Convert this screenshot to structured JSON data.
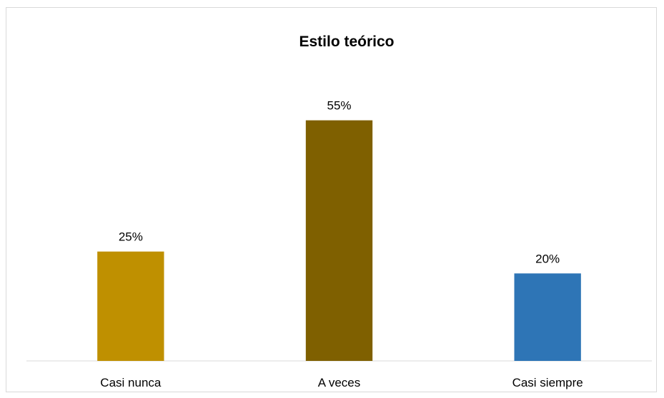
{
  "chart_data": {
    "type": "bar",
    "title": "Estilo teórico",
    "xlabel": "",
    "ylabel": "",
    "categories": [
      "Casi nunca",
      "A veces",
      "Casi siempre"
    ],
    "values": [
      25,
      55,
      20
    ],
    "value_labels": [
      "25%",
      "55%",
      "20%"
    ],
    "colors": [
      "#BF9000",
      "#7F6000",
      "#2E75B6"
    ],
    "ylim": [
      0,
      60
    ],
    "grid": false,
    "legend": "none"
  }
}
